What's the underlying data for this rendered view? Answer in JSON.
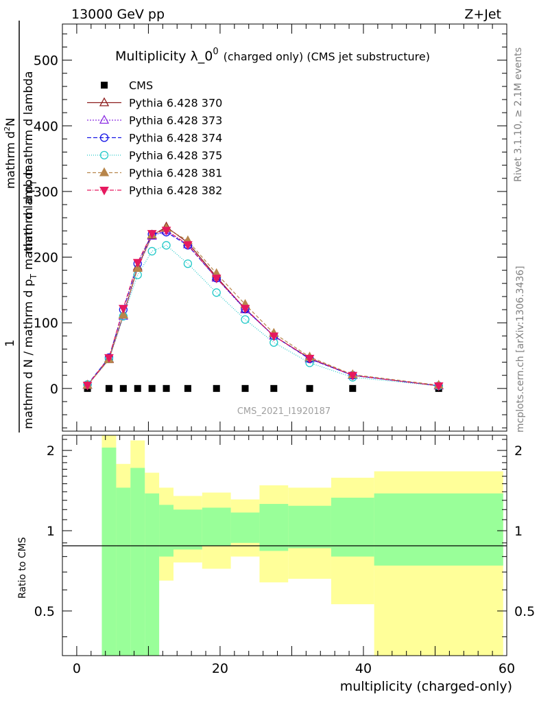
{
  "header": {
    "left": "13000 GeV pp",
    "right": "Z+Jet"
  },
  "side_labels": {
    "rivet": "Rivet 3.1.10, ≥ 2.1M events",
    "mcplots": "mcplots.cern.ch [arXiv:1306.3436]"
  },
  "watermark": "CMS_2021_I1920187",
  "colors": {
    "cms": "#000000",
    "p370": "#8b1a1a",
    "p373": "#8a2be2",
    "p374": "#1414e6",
    "p375": "#20c8c8",
    "p381": "#b8864b",
    "p382": "#e6195f",
    "band_inner": "#99ff99",
    "band_outer": "#ffff99"
  },
  "chart_data": [
    {
      "type": "line",
      "title": "Multiplicity λ_0",
      "title_sup": "0",
      "title_suffix": "(charged only) (CMS jet substructure)",
      "xlabel": "multiplicity (charged-only)",
      "ylabel": {
        "numerator": "1",
        "denominator": "mathrm d N / mathrm d p",
        "denominator_sub": "T",
        "denominator_tail": "mathrm d lambda",
        "right_top": "mathrm d",
        "right_sup": "2",
        "right_top_tail": "N",
        "right_bottom": "mathrm d p",
        "right_bottom_sub": "T",
        "right_bottom_tail": "mathrm d lambda"
      },
      "xlim": [
        -2,
        60
      ],
      "ylim": [
        -65,
        555
      ],
      "yticks": [
        0,
        100,
        200,
        300,
        400,
        500
      ],
      "x": [
        1.5,
        4.5,
        6.5,
        8.5,
        10.5,
        12.5,
        15.5,
        19.5,
        23.5,
        27.5,
        32.5,
        38.5,
        50.5
      ],
      "series": [
        {
          "name": "CMS",
          "key": "cms",
          "marker": "square",
          "dash": "none",
          "values": [
            0,
            0,
            0,
            0,
            0,
            0,
            0,
            0,
            0,
            0,
            0,
            0,
            0
          ]
        },
        {
          "name": "Pythia 6.428 370",
          "key": "p370",
          "marker": "triangle-open",
          "dash": "none",
          "values": [
            5,
            45,
            112,
            185,
            233,
            246,
            222,
            170,
            121,
            80,
            46,
            20,
            4
          ]
        },
        {
          "name": "Pythia 6.428 373",
          "key": "p373",
          "marker": "triangle-open",
          "dash": "2,2",
          "values": [
            5,
            44,
            110,
            183,
            232,
            240,
            219,
            168,
            120,
            80,
            45,
            20,
            4
          ]
        },
        {
          "name": "Pythia 6.428 374",
          "key": "p374",
          "marker": "circle-open",
          "dash": "6,3",
          "values": [
            6,
            47,
            120,
            190,
            235,
            238,
            218,
            168,
            121,
            80,
            45,
            20,
            4
          ]
        },
        {
          "name": "Pythia 6.428 375",
          "key": "p375",
          "marker": "circle-open",
          "dash": "1,2",
          "values": [
            6,
            45,
            110,
            173,
            209,
            218,
            190,
            146,
            105,
            70,
            39,
            17,
            4
          ]
        },
        {
          "name": "Pythia 6.428 381",
          "key": "p381",
          "marker": "triangle-filled",
          "dash": "5,3",
          "values": [
            5,
            44,
            112,
            183,
            234,
            244,
            225,
            175,
            128,
            84,
            48,
            21,
            5
          ]
        },
        {
          "name": "Pythia 6.428 382",
          "key": "p382",
          "marker": "triangle-down-filled",
          "dash": "6,2,1,2",
          "values": [
            5,
            47,
            122,
            192,
            236,
            241,
            219,
            168,
            122,
            80,
            46,
            20,
            4
          ]
        }
      ]
    },
    {
      "type": "area",
      "ylabel": "Ratio to CMS",
      "xlim": [
        -2,
        60
      ],
      "ylim": [
        0.34,
        2.28
      ],
      "yticks": [
        0.5,
        1,
        2
      ],
      "xticks": [
        0,
        20,
        40,
        60
      ],
      "reference": 1,
      "bins": [
        {
          "lo": 3.5,
          "hi": 5.5,
          "inner": [
            0.34,
            2.05
          ],
          "outer": [
            0.34,
            2.28
          ]
        },
        {
          "lo": 5.5,
          "hi": 7.5,
          "inner": [
            0.34,
            1.45
          ],
          "outer": [
            0.68,
            1.78
          ]
        },
        {
          "lo": 7.5,
          "hi": 9.5,
          "inner": [
            0.34,
            1.72
          ],
          "outer": [
            0.34,
            2.18
          ]
        },
        {
          "lo": 9.5,
          "hi": 11.5,
          "inner": [
            0.34,
            1.38
          ],
          "outer": [
            0.52,
            1.65
          ]
        },
        {
          "lo": 11.5,
          "hi": 13.5,
          "inner": [
            0.8,
            1.25
          ],
          "outer": [
            0.65,
            1.45
          ]
        },
        {
          "lo": 13.5,
          "hi": 17.5,
          "inner": [
            0.85,
            1.2
          ],
          "outer": [
            0.76,
            1.35
          ]
        },
        {
          "lo": 17.5,
          "hi": 21.5,
          "inner": [
            0.88,
            1.22
          ],
          "outer": [
            0.72,
            1.39
          ]
        },
        {
          "lo": 21.5,
          "hi": 25.5,
          "inner": [
            0.9,
            1.17
          ],
          "outer": [
            0.8,
            1.31
          ]
        },
        {
          "lo": 25.5,
          "hi": 29.5,
          "inner": [
            0.84,
            1.26
          ],
          "outer": [
            0.64,
            1.48
          ]
        },
        {
          "lo": 29.5,
          "hi": 35.5,
          "inner": [
            0.86,
            1.24
          ],
          "outer": [
            0.66,
            1.45
          ]
        },
        {
          "lo": 35.5,
          "hi": 41.5,
          "inner": [
            0.8,
            1.33
          ],
          "outer": [
            0.53,
            1.58
          ]
        },
        {
          "lo": 41.5,
          "hi": 59.5,
          "inner": [
            0.74,
            1.38
          ],
          "outer": [
            0.34,
            1.67
          ]
        }
      ]
    }
  ]
}
